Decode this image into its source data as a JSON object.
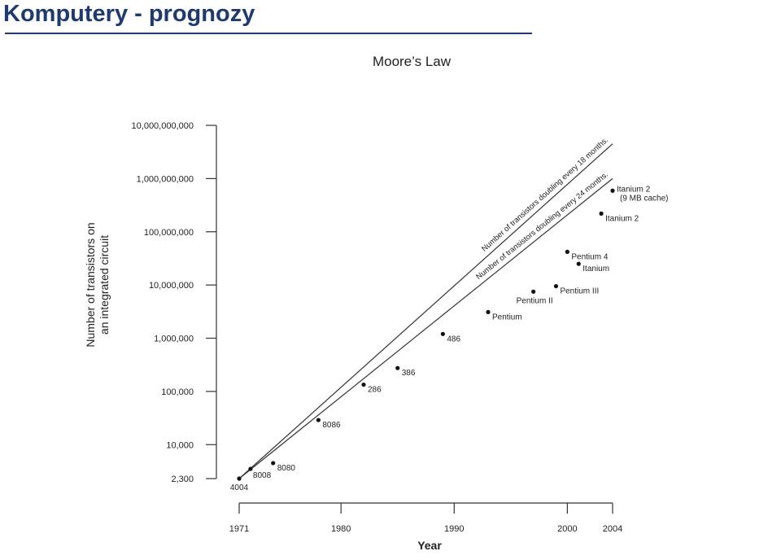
{
  "slide": {
    "title": "Komputery - prognozy"
  },
  "colors": {
    "title": "#1f3a6e",
    "axis": "#333333",
    "points": "#111111",
    "lines": "#333333"
  },
  "chart_data": {
    "type": "scatter",
    "title": "Moore’s Law",
    "xlabel": "Year",
    "ylabel": [
      "Number of transistors on",
      "an integrated circuit"
    ],
    "yscale": "log",
    "xlim": [
      1971,
      2004
    ],
    "ylim": [
      2300,
      10000000000
    ],
    "xticks": [
      {
        "value": 1971,
        "label": "1971"
      },
      {
        "value": 1980,
        "label": "1980"
      },
      {
        "value": 1990,
        "label": "1990"
      },
      {
        "value": 2000,
        "label": "2000"
      },
      {
        "value": 2004,
        "label": "2004"
      }
    ],
    "yticks": [
      {
        "value": 2300,
        "label": "2,300"
      },
      {
        "value": 10000,
        "label": "10,000"
      },
      {
        "value": 100000,
        "label": "100,000"
      },
      {
        "value": 1000000,
        "label": "1,000,000"
      },
      {
        "value": 10000000,
        "label": "10,000,000"
      },
      {
        "value": 100000000,
        "label": "100,000,000"
      },
      {
        "value": 1000000000,
        "label": "1,000,000,000"
      },
      {
        "value": 10000000000,
        "label": "10,000,000,000"
      }
    ],
    "points": [
      {
        "label": "4004",
        "x": 1971,
        "y": 2300,
        "pos": "below"
      },
      {
        "label": "8008",
        "x": 1972,
        "y": 3500,
        "pos": "below-right"
      },
      {
        "label": "8080",
        "x": 1974,
        "y": 4500,
        "pos": "right"
      },
      {
        "label": "8086",
        "x": 1978,
        "y": 29000,
        "pos": "right"
      },
      {
        "label": "286",
        "x": 1982,
        "y": 134000,
        "pos": "right"
      },
      {
        "label": "386",
        "x": 1985,
        "y": 275000,
        "pos": "right"
      },
      {
        "label": "486",
        "x": 1989,
        "y": 1200000,
        "pos": "right"
      },
      {
        "label": "Pentium",
        "x": 1993,
        "y": 3100000,
        "pos": "right"
      },
      {
        "label": "Pentium II",
        "x": 1997,
        "y": 7500000,
        "pos": "below-left"
      },
      {
        "label": "Pentium III",
        "x": 1999,
        "y": 9500000,
        "pos": "right"
      },
      {
        "label": "Pentium 4",
        "x": 2000,
        "y": 42000000,
        "pos": "right"
      },
      {
        "label": "Itanium",
        "x": 2001,
        "y": 25000000,
        "pos": "right"
      },
      {
        "label": "Itanium 2",
        "x": 2003,
        "y": 220000000,
        "pos": "right"
      },
      {
        "label": "Itanium 2",
        "label2": "(9 MB cache)",
        "x": 2004,
        "y": 592000000,
        "pos": "right"
      }
    ],
    "trend_lines": [
      {
        "label": "Number of transistors doubling every 18 months.",
        "x0": 1971,
        "y0": 2300,
        "x1": 2004,
        "y1": 4500000000
      },
      {
        "label": "Number of transistors doubling every 24 months.",
        "x0": 1971,
        "y0": 2300,
        "x1": 2004,
        "y1": 1000000000
      }
    ]
  }
}
